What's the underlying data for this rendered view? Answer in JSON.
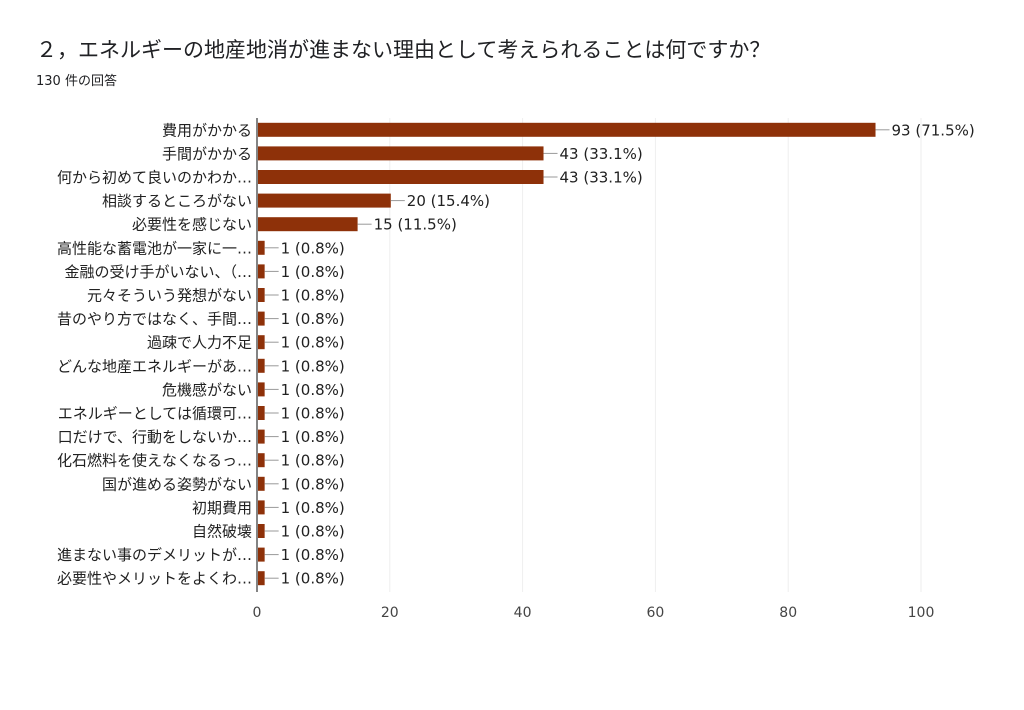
{
  "question": {
    "title": "２，エネルギーの地産地消が進まない理由として考えられることは何ですか？",
    "response_count": "130 件の回答"
  },
  "colors": {
    "bar": "#8e3109",
    "grid": "#eeeeee",
    "axis": "#333333",
    "text": "#212121",
    "tick_text": "#444444",
    "leader": "#999999"
  },
  "chart_data": {
    "type": "bar",
    "orientation": "horizontal",
    "title": "",
    "xlabel": "",
    "ylabel": "",
    "xlim": [
      0,
      100
    ],
    "x_ticks": [
      0,
      20,
      40,
      60,
      80,
      100
    ],
    "grid": true,
    "categories": [
      "費用がかかる",
      "手間がかかる",
      "何から初めて良いのかわか…",
      "相談するところがない",
      "必要性を感じない",
      "高性能な蓄電池が一家に一…",
      "金融の受け手がいない、（…",
      "元々そういう発想がない",
      "昔のやり方ではなく、手間…",
      "過疎で人力不足",
      "どんな地産エネルギーがあ…",
      "危機感がない",
      "エネルギーとしては循環可…",
      "口だけで、行動をしないか…",
      "化石燃料を使えなくなるっ…",
      "国が進める姿勢がない",
      "初期費用",
      "自然破壊",
      "進まない事のデメリットが…",
      "必要性やメリットをよくわ…"
    ],
    "values": [
      93,
      43,
      43,
      20,
      15,
      1,
      1,
      1,
      1,
      1,
      1,
      1,
      1,
      1,
      1,
      1,
      1,
      1,
      1,
      1
    ],
    "value_labels": [
      "93 (71.5%)",
      "43 (33.1%)",
      "43 (33.1%)",
      "20 (15.4%)",
      "15 (11.5%)",
      "1 (0.8%)",
      "1 (0.8%)",
      "1 (0.8%)",
      "1 (0.8%)",
      "1 (0.8%)",
      "1 (0.8%)",
      "1 (0.8%)",
      "1 (0.8%)",
      "1 (0.8%)",
      "1 (0.8%)",
      "1 (0.8%)",
      "1 (0.8%)",
      "1 (0.8%)",
      "1 (0.8%)",
      "1 (0.8%)"
    ]
  }
}
